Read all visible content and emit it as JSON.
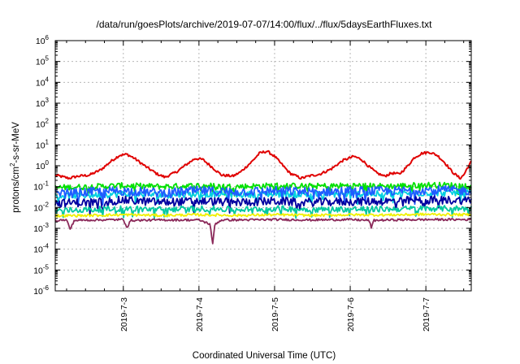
{
  "chart_data": {
    "type": "line",
    "title": "/data/run/goesPlots/archive/2019-07-07/14:00/flux/../flux/5daysEarthFluxes.txt",
    "xlabel": "Coordinated Universal Time (UTC)",
    "ylabel_parts": {
      "pre": "protons/cm",
      "sup": "2",
      "post": "-s-sr-MeV"
    },
    "yscale": "log",
    "ylim_exp": [
      -6,
      6
    ],
    "ytick_base": "10",
    "yticks_exp": [
      "-6",
      "-5",
      "-4",
      "-3",
      "-2",
      "-1",
      "0",
      "1",
      "2",
      "3",
      "4",
      "5",
      "6"
    ],
    "xlim_days": [
      2.1,
      7.6
    ],
    "xticks": [
      {
        "label": "2019-7-3",
        "day": 3
      },
      {
        "label": "2019-7-4",
        "day": 4
      },
      {
        "label": "2019-7-5",
        "day": 5
      },
      {
        "label": "2019-7-6",
        "day": 6
      },
      {
        "label": "2019-7-7",
        "day": 7
      }
    ],
    "grid": true,
    "legend": "none",
    "series": [
      {
        "color": "#e00000",
        "log10": [
          [
            2.1,
            -0.45
          ],
          [
            2.22,
            -0.55
          ],
          [
            2.28,
            -0.6
          ],
          [
            2.4,
            -0.5
          ],
          [
            2.55,
            -0.45
          ],
          [
            2.7,
            -0.2
          ],
          [
            2.85,
            0.25
          ],
          [
            2.95,
            0.5
          ],
          [
            3.05,
            0.55
          ],
          [
            3.15,
            0.35
          ],
          [
            3.3,
            -0.05
          ],
          [
            3.45,
            -0.4
          ],
          [
            3.55,
            -0.55
          ],
          [
            3.7,
            -0.3
          ],
          [
            3.85,
            0.1
          ],
          [
            3.95,
            0.35
          ],
          [
            4.05,
            0.3
          ],
          [
            4.2,
            -0.15
          ],
          [
            4.3,
            -0.45
          ],
          [
            4.45,
            -0.5
          ],
          [
            4.55,
            -0.3
          ],
          [
            4.7,
            0.2
          ],
          [
            4.8,
            0.6
          ],
          [
            4.9,
            0.7
          ],
          [
            5.0,
            0.45
          ],
          [
            5.1,
            0.05
          ],
          [
            5.2,
            -0.35
          ],
          [
            5.35,
            -0.6
          ],
          [
            5.45,
            -0.5
          ],
          [
            5.6,
            -0.4
          ],
          [
            5.75,
            -0.15
          ],
          [
            5.9,
            0.25
          ],
          [
            6.05,
            0.45
          ],
          [
            6.15,
            0.3
          ],
          [
            6.25,
            -0.05
          ],
          [
            6.35,
            -0.35
          ],
          [
            6.45,
            -0.5
          ],
          [
            6.55,
            -0.35
          ],
          [
            6.65,
            -0.4
          ],
          [
            6.75,
            -0.05
          ],
          [
            6.85,
            0.4
          ],
          [
            6.95,
            0.6
          ],
          [
            7.05,
            0.65
          ],
          [
            7.15,
            0.5
          ],
          [
            7.25,
            0.15
          ],
          [
            7.35,
            -0.3
          ],
          [
            7.45,
            -0.6
          ],
          [
            7.5,
            -0.45
          ],
          [
            7.55,
            -0.1
          ],
          [
            7.6,
            0.2
          ]
        ]
      },
      {
        "color": "#00e000",
        "log10": [
          [
            2.1,
            -1.05
          ],
          [
            2.6,
            -1.0
          ],
          [
            3.0,
            -0.95
          ],
          [
            3.5,
            -1.0
          ],
          [
            4.0,
            -0.95
          ],
          [
            4.5,
            -1.0
          ],
          [
            5.0,
            -0.95
          ],
          [
            5.5,
            -0.98
          ],
          [
            6.0,
            -0.95
          ],
          [
            6.5,
            -0.98
          ],
          [
            7.0,
            -0.92
          ],
          [
            7.6,
            -0.95
          ]
        ]
      },
      {
        "color": "#00d0e0",
        "log10": [
          [
            2.1,
            -1.45
          ],
          [
            2.6,
            -1.4
          ],
          [
            3.0,
            -1.35
          ],
          [
            3.5,
            -1.4
          ],
          [
            4.0,
            -1.35
          ],
          [
            4.5,
            -1.38
          ],
          [
            5.0,
            -1.35
          ],
          [
            5.5,
            -1.38
          ],
          [
            6.0,
            -1.35
          ],
          [
            6.5,
            -1.35
          ],
          [
            7.0,
            -1.3
          ],
          [
            7.6,
            -1.3
          ]
        ]
      },
      {
        "color": "#1f5cff",
        "log10": [
          [
            2.1,
            -1.35
          ],
          [
            2.6,
            -1.25
          ],
          [
            3.0,
            -1.2
          ],
          [
            3.5,
            -1.3
          ],
          [
            4.0,
            -1.2
          ],
          [
            4.5,
            -1.25
          ],
          [
            5.0,
            -1.2
          ],
          [
            5.5,
            -1.25
          ],
          [
            6.0,
            -1.2
          ],
          [
            6.5,
            -1.22
          ],
          [
            7.0,
            -1.15
          ],
          [
            7.6,
            -1.2
          ]
        ]
      },
      {
        "color": "#0000a0",
        "log10": [
          [
            2.1,
            -1.8
          ],
          [
            2.6,
            -1.75
          ],
          [
            3.0,
            -1.65
          ],
          [
            3.5,
            -1.75
          ],
          [
            4.0,
            -1.7
          ],
          [
            4.5,
            -1.75
          ],
          [
            5.0,
            -1.7
          ],
          [
            5.5,
            -1.75
          ],
          [
            6.0,
            -1.72
          ],
          [
            6.5,
            -1.7
          ],
          [
            7.0,
            -1.65
          ],
          [
            7.6,
            -1.65
          ]
        ]
      },
      {
        "color": "#00c8a0",
        "log10": [
          [
            2.1,
            -2.15
          ],
          [
            2.6,
            -2.1
          ],
          [
            3.0,
            -2.05
          ],
          [
            3.5,
            -2.1
          ],
          [
            4.0,
            -2.05
          ],
          [
            4.5,
            -2.1
          ],
          [
            5.0,
            -2.05
          ],
          [
            5.5,
            -2.1
          ],
          [
            6.0,
            -2.08
          ],
          [
            6.5,
            -2.08
          ],
          [
            7.0,
            -2.05
          ],
          [
            7.6,
            -2.05
          ]
        ]
      },
      {
        "color": "#f0f000",
        "log10": [
          [
            2.1,
            -2.4
          ],
          [
            2.6,
            -2.38
          ],
          [
            3.0,
            -2.35
          ],
          [
            3.5,
            -2.38
          ],
          [
            4.0,
            -2.35
          ],
          [
            4.5,
            -2.38
          ],
          [
            5.0,
            -2.35
          ],
          [
            5.5,
            -2.38
          ],
          [
            6.0,
            -2.35
          ],
          [
            6.5,
            -2.36
          ],
          [
            7.0,
            -2.33
          ],
          [
            7.6,
            -2.35
          ]
        ]
      },
      {
        "color": "#8b2a5a",
        "log10": [
          [
            2.1,
            -2.62
          ],
          [
            2.25,
            -2.6
          ],
          [
            2.3,
            -3.05
          ],
          [
            2.35,
            -2.62
          ],
          [
            2.6,
            -2.6
          ],
          [
            3.0,
            -2.58
          ],
          [
            3.05,
            -2.95
          ],
          [
            3.1,
            -2.62
          ],
          [
            3.5,
            -2.6
          ],
          [
            4.0,
            -2.6
          ],
          [
            4.15,
            -2.8
          ],
          [
            4.18,
            -3.85
          ],
          [
            4.21,
            -2.8
          ],
          [
            4.3,
            -2.6
          ],
          [
            4.5,
            -2.6
          ],
          [
            5.0,
            -2.58
          ],
          [
            5.5,
            -2.6
          ],
          [
            6.0,
            -2.58
          ],
          [
            6.25,
            -2.62
          ],
          [
            6.28,
            -3.0
          ],
          [
            6.31,
            -2.62
          ],
          [
            6.5,
            -2.6
          ],
          [
            7.0,
            -2.58
          ],
          [
            7.6,
            -2.58
          ]
        ]
      }
    ]
  }
}
